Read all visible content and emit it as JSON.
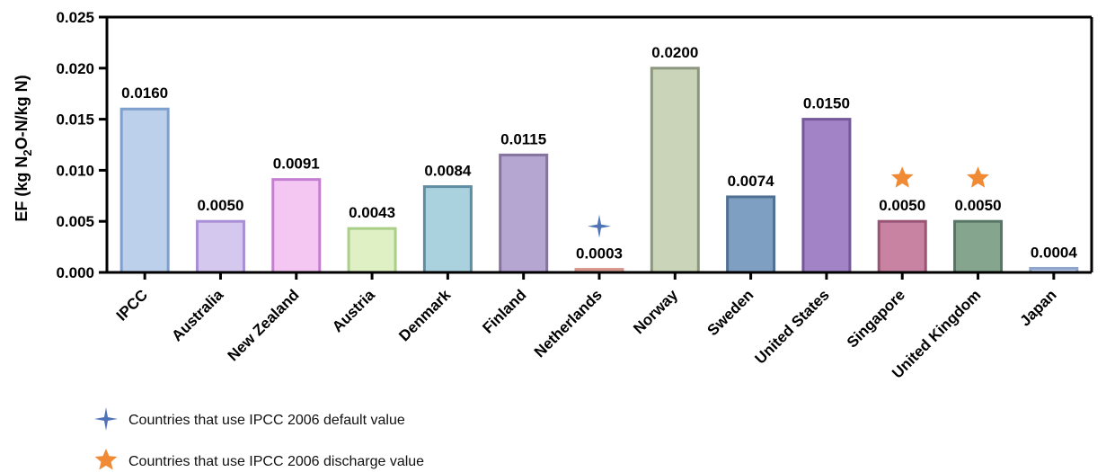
{
  "chart_data": {
    "type": "bar",
    "ylabel_parts": {
      "pre": "EF (kg N",
      "sub1": "2",
      "mid": "O-N/kg N)"
    },
    "ylim": [
      0,
      0.025
    ],
    "yticks": [
      "0.000",
      "0.005",
      "0.010",
      "0.015",
      "0.020",
      "0.025"
    ],
    "ytick_values": [
      0,
      0.005,
      0.01,
      0.015,
      0.02,
      0.025
    ],
    "grid": false,
    "categories": [
      "IPCC",
      "Australia",
      "New Zealand",
      "Austria",
      "Denmark",
      "Finland",
      "Netherlands",
      "Norway",
      "Sweden",
      "United States",
      "Singapore",
      "United Kingdom",
      "Japan"
    ],
    "values": [
      0.016,
      0.005,
      0.0091,
      0.0043,
      0.0084,
      0.0115,
      0.0003,
      0.02,
      0.0074,
      0.015,
      0.005,
      0.005,
      0.0004
    ],
    "value_labels": [
      "0.0160",
      "0.0050",
      "0.0091",
      "0.0043",
      "0.0084",
      "0.0115",
      "0.0003",
      "0.0200",
      "0.0074",
      "0.0150",
      "0.0050",
      "0.0050",
      "0.0004"
    ],
    "fill_colors": [
      "#bcd0ec",
      "#d5c8ee",
      "#f4c6f2",
      "#dff0c4",
      "#a9d1de",
      "#b5a5d1",
      "#f5c6bf",
      "#c9d4b8",
      "#7f9fc2",
      "#a284c6",
      "#c983a2",
      "#86a58e",
      "#c1d0ea"
    ],
    "edge_colors": [
      "#7f9fcc",
      "#a98fd6",
      "#c57fd0",
      "#a9cf88",
      "#5f8ea3",
      "#86739f",
      "#d7948b",
      "#8d9780",
      "#4f6f93",
      "#74589a",
      "#985474",
      "#587665",
      "#8ea5cc"
    ],
    "markers": [
      {
        "category": "Netherlands",
        "symbol": "four-point-star",
        "color": "#4f73b6"
      },
      {
        "category": "Singapore",
        "symbol": "five-point-star",
        "color": "#f08a35"
      },
      {
        "category": "United Kingdom",
        "symbol": "five-point-star",
        "color": "#f08a35"
      }
    ],
    "legend": {
      "placement": "bottom-left",
      "items": [
        {
          "symbol": "four-point-star",
          "color": "#4f73b6",
          "label": "Countries that use IPCC 2006 default value"
        },
        {
          "symbol": "five-point-star",
          "color": "#f08a35",
          "label": "Countries that use IPCC 2006 discharge value"
        }
      ]
    }
  }
}
